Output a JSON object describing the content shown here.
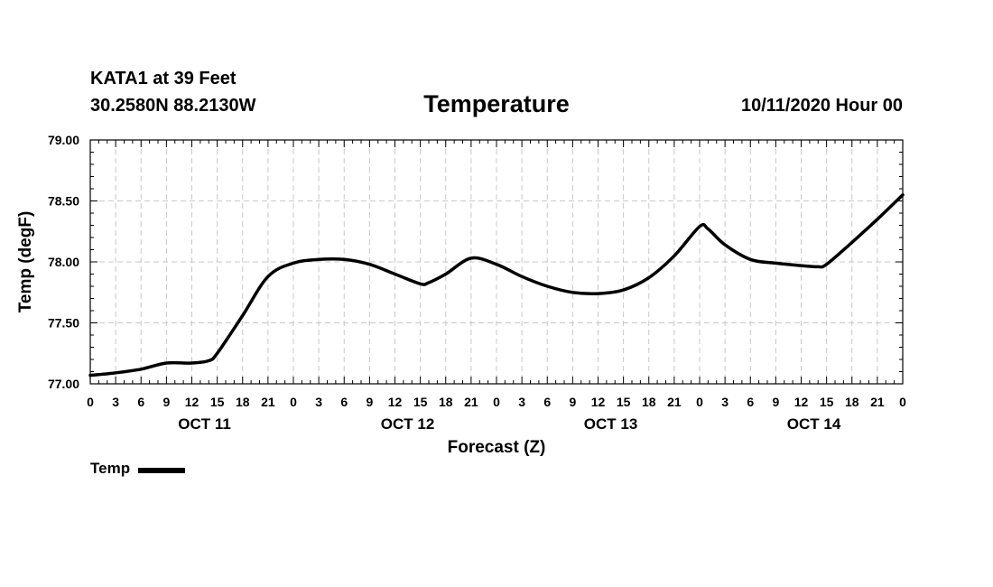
{
  "header": {
    "station": "KATA1 at 39 Feet",
    "coords": "30.2580N 88.2130W",
    "title": "Temperature",
    "issued": "10/11/2020 Hour 00"
  },
  "legend": {
    "label": "Temp",
    "color": "#000000"
  },
  "chart_data": {
    "type": "line",
    "title": "Temperature",
    "xlabel": "Forecast (Z)",
    "ylabel": "Temp (degF)",
    "xlim": [
      0,
      96
    ],
    "ylim": [
      77.0,
      79.0
    ],
    "y_ticks": [
      "77.00",
      "77.50",
      "78.00",
      "78.50",
      "79.00"
    ],
    "x_tick_labels": [
      "0",
      "3",
      "6",
      "9",
      "12",
      "15",
      "18",
      "21",
      "0",
      "3",
      "6",
      "9",
      "12",
      "15",
      "18",
      "21",
      "0",
      "3",
      "6",
      "9",
      "12",
      "15",
      "18",
      "21",
      "0",
      "3",
      "6",
      "9",
      "12",
      "15",
      "18",
      "21",
      "0"
    ],
    "day_labels": [
      {
        "label": "OCT 11",
        "hour": 13.5
      },
      {
        "label": "OCT 12",
        "hour": 37.5
      },
      {
        "label": "OCT 13",
        "hour": 61.5
      },
      {
        "label": "OCT 14",
        "hour": 85.5
      }
    ],
    "grid": true,
    "series": [
      {
        "name": "Temp",
        "color": "#000000",
        "x": [
          0,
          3,
          6,
          9,
          12,
          14,
          15,
          18,
          21,
          24,
          27,
          30,
          33,
          36,
          39,
          40,
          42,
          45,
          48,
          51,
          54,
          57,
          60,
          63,
          66,
          69,
          72,
          73,
          75,
          78,
          81,
          84,
          86,
          87,
          90,
          93,
          96
        ],
        "y": [
          77.07,
          77.09,
          77.12,
          77.17,
          77.17,
          77.19,
          77.25,
          77.56,
          77.88,
          77.99,
          78.02,
          78.02,
          77.98,
          77.9,
          77.82,
          77.83,
          77.9,
          78.03,
          77.98,
          77.88,
          77.8,
          77.75,
          77.74,
          77.77,
          77.87,
          78.05,
          78.29,
          78.27,
          78.14,
          78.02,
          77.99,
          77.97,
          77.96,
          77.98,
          78.16,
          78.35,
          78.55
        ]
      }
    ]
  }
}
